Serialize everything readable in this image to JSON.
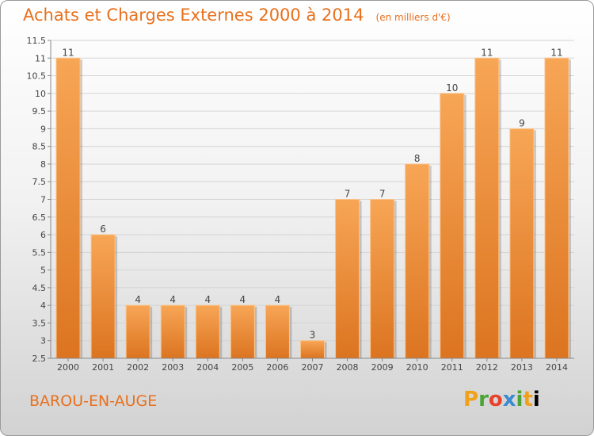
{
  "header": {
    "title": "Achats et Charges Externes 2000 à 2014",
    "unit": "(en milliers d'€)"
  },
  "footer": {
    "commune": "BAROU-EN-AUGE",
    "logo_letters": [
      "P",
      "r",
      "o",
      "x",
      "i",
      "t",
      "i"
    ]
  },
  "colors": {
    "accent": "#e8701c",
    "bar_light": "#f6a352",
    "bar_dark": "#dd7621"
  },
  "chart_data": {
    "type": "bar",
    "title": "Achats et Charges Externes 2000 à 2014",
    "xlabel": "",
    "ylabel": "",
    "categories": [
      "2000",
      "2001",
      "2002",
      "2003",
      "2004",
      "2005",
      "2006",
      "2007",
      "2008",
      "2009",
      "2010",
      "2011",
      "2012",
      "2013",
      "2014"
    ],
    "values": [
      11,
      6,
      4,
      4,
      4,
      4,
      4,
      3,
      7,
      7,
      8,
      10,
      11,
      9,
      11
    ],
    "ylim": [
      2.5,
      11.5
    ],
    "yticks": [
      "2.5",
      "3",
      "3.5",
      "4",
      "4.5",
      "5",
      "5.5",
      "6",
      "6.5",
      "7",
      "7.5",
      "8",
      "8.5",
      "9",
      "9.5",
      "10",
      "10.5",
      "11",
      "11.5"
    ],
    "grid": true,
    "legend": "none"
  }
}
